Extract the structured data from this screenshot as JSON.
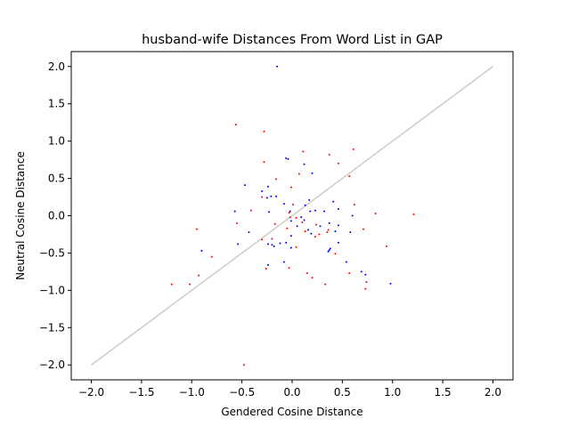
{
  "chart_data": {
    "type": "scatter",
    "title": "husband-wife Distances From Word List in GAP",
    "xlabel": "Gendered Cosine Distance",
    "ylabel": "Neutral Cosine Distance",
    "xlim": [
      -2.2,
      2.2
    ],
    "ylim": [
      -2.2,
      2.2
    ],
    "xticks": [
      "−2.0",
      "−1.5",
      "−1.0",
      "−0.5",
      "0.0",
      "0.5",
      "1.0",
      "1.5",
      "2.0"
    ],
    "yticks": [
      "−2.0",
      "−1.5",
      "−1.0",
      "−0.5",
      "0.0",
      "0.5",
      "1.0",
      "1.5",
      "2.0"
    ],
    "grid": false,
    "reference_line": {
      "x": [
        -2.0,
        2.0
      ],
      "y": [
        -2.0,
        2.0
      ],
      "color": "#cccccc"
    },
    "series": [
      {
        "color": "#0000ff",
        "points": [
          [
            -0.15,
            2.0
          ],
          [
            -0.06,
            0.77
          ],
          [
            -0.04,
            0.76
          ],
          [
            0.12,
            0.69
          ],
          [
            0.2,
            0.57
          ],
          [
            -0.47,
            0.41
          ],
          [
            -0.3,
            0.33
          ],
          [
            -0.24,
            0.39
          ],
          [
            -0.21,
            0.26
          ],
          [
            -0.16,
            0.26
          ],
          [
            -0.25,
            0.24
          ],
          [
            -0.08,
            0.16
          ],
          [
            0.17,
            0.21
          ],
          [
            0.41,
            0.19
          ],
          [
            0.13,
            0.14
          ],
          [
            -0.02,
            0.06
          ],
          [
            0.18,
            0.06
          ],
          [
            0.23,
            0.07
          ],
          [
            0.46,
            0.09
          ],
          [
            0.32,
            0.06
          ],
          [
            -0.57,
            0.06
          ],
          [
            -0.23,
            0.05
          ],
          [
            0.6,
            0.0
          ],
          [
            0.09,
            -0.02
          ],
          [
            -0.01,
            -0.07
          ],
          [
            0.12,
            -0.06
          ],
          [
            0.05,
            -0.14
          ],
          [
            0.28,
            -0.14
          ],
          [
            0.37,
            -0.1
          ],
          [
            0.46,
            -0.13
          ],
          [
            0.16,
            -0.19
          ],
          [
            0.19,
            -0.24
          ],
          [
            0.43,
            -0.21
          ],
          [
            0.58,
            -0.22
          ],
          [
            -0.43,
            -0.22
          ],
          [
            -0.01,
            -0.27
          ],
          [
            -0.54,
            -0.38
          ],
          [
            -0.2,
            -0.39
          ],
          [
            -0.24,
            -0.38
          ],
          [
            -0.12,
            -0.37
          ],
          [
            -0.06,
            -0.36
          ],
          [
            0.46,
            -0.36
          ],
          [
            0.37,
            -0.46
          ],
          [
            0.38,
            -0.44
          ],
          [
            -0.9,
            -0.47
          ],
          [
            -0.08,
            -0.62
          ],
          [
            -0.24,
            -0.66
          ],
          [
            0.54,
            -0.62
          ],
          [
            0.36,
            -0.48
          ],
          [
            -0.18,
            -0.41
          ],
          [
            0.69,
            -0.75
          ],
          [
            0.73,
            -0.79
          ],
          [
            0.98,
            -0.91
          ],
          [
            -0.01,
            -0.43
          ]
        ]
      },
      {
        "color": "#ff0000",
        "points": [
          [
            -0.56,
            1.22
          ],
          [
            -0.28,
            1.13
          ],
          [
            0.11,
            0.86
          ],
          [
            0.61,
            0.89
          ],
          [
            0.37,
            0.82
          ],
          [
            -0.28,
            0.72
          ],
          [
            0.46,
            0.7
          ],
          [
            0.57,
            0.53
          ],
          [
            0.07,
            0.56
          ],
          [
            -0.16,
            0.49
          ],
          [
            -0.01,
            0.38
          ],
          [
            -0.3,
            0.25
          ],
          [
            0.01,
            0.15
          ],
          [
            0.62,
            0.15
          ],
          [
            -0.41,
            0.07
          ],
          [
            -0.03,
            0.04
          ],
          [
            0.83,
            0.03
          ],
          [
            1.21,
            0.02
          ],
          [
            -0.02,
            -0.02
          ],
          [
            0.04,
            -0.03
          ],
          [
            -0.17,
            -0.11
          ],
          [
            -0.55,
            -0.1
          ],
          [
            0.1,
            -0.09
          ],
          [
            0.24,
            -0.12
          ],
          [
            -0.05,
            -0.17
          ],
          [
            -0.95,
            -0.18
          ],
          [
            0.71,
            -0.18
          ],
          [
            0.35,
            -0.22
          ],
          [
            0.27,
            -0.25
          ],
          [
            0.23,
            -0.28
          ],
          [
            -0.2,
            -0.31
          ],
          [
            -0.3,
            -0.32
          ],
          [
            0.04,
            -0.42
          ],
          [
            0.94,
            -0.41
          ],
          [
            0.43,
            -0.51
          ],
          [
            -0.8,
            -0.55
          ],
          [
            -0.26,
            -0.71
          ],
          [
            -0.03,
            -0.7
          ],
          [
            0.57,
            -0.77
          ],
          [
            0.15,
            -0.77
          ],
          [
            -0.93,
            -0.8
          ],
          [
            0.2,
            -0.83
          ],
          [
            0.33,
            -0.92
          ],
          [
            0.74,
            -0.89
          ],
          [
            -1.2,
            -0.92
          ],
          [
            -1.02,
            -0.92
          ],
          [
            0.73,
            -0.98
          ],
          [
            -0.48,
            -2.0
          ],
          [
            0.13,
            -0.21
          ],
          [
            0.36,
            -0.19
          ]
        ]
      }
    ]
  }
}
